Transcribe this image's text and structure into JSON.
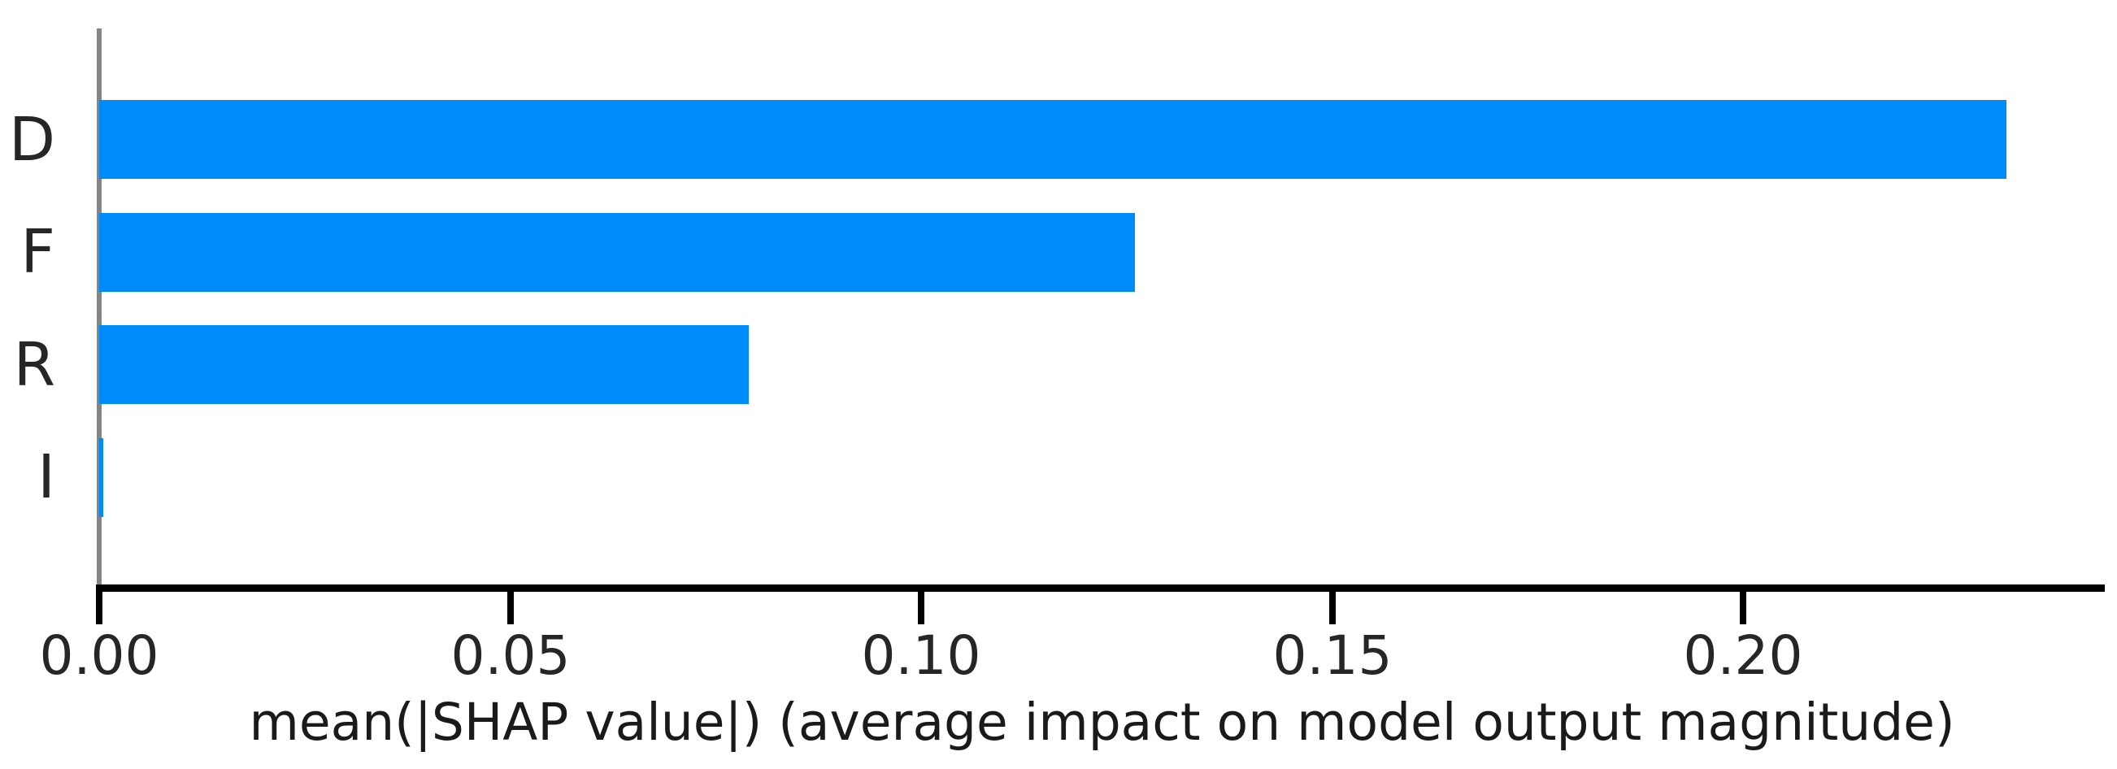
{
  "chart_data": {
    "type": "bar",
    "orientation": "horizontal",
    "title": "",
    "categories": [
      "D",
      "F",
      "R",
      "I"
    ],
    "values": [
      0.232,
      0.126,
      0.079,
      0.0005
    ],
    "xlabel": "mean(|SHAP value|) (average impact on model output magnitude)",
    "ylabel": "",
    "xlim": [
      0,
      0.244
    ],
    "x_ticks": [
      0,
      0.05,
      0.1,
      0.15,
      0.2
    ],
    "x_tick_labels": [
      "0.00",
      "0.05",
      "0.10",
      "0.15",
      "0.20"
    ],
    "grid": false,
    "legend": false,
    "bar_color": "#008bfb",
    "axis_line_color": "#000000",
    "left_spine_color": "#848484",
    "tick_text_color": "#262626"
  }
}
